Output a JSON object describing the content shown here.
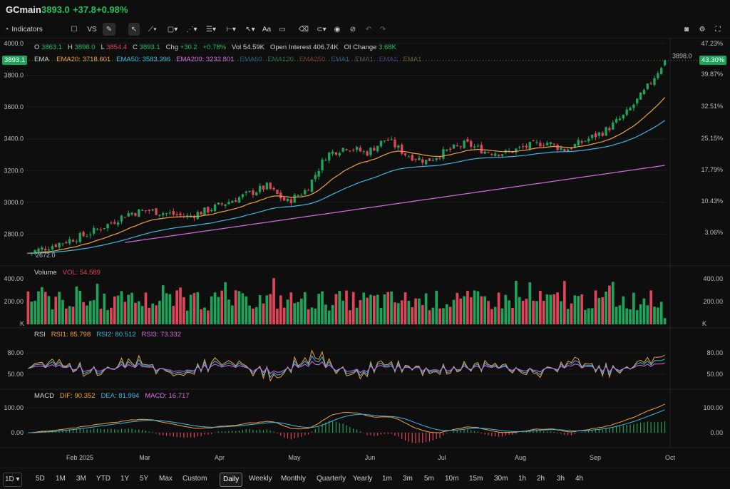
{
  "header": {
    "symbol": "GCmain",
    "price": "3893.0",
    "change": "+37.8",
    "change_pct": "+0.98%"
  },
  "toolbar": {
    "indicators_label": "Indicators",
    "vs_label": "VS",
    "text_tool": "Aa"
  },
  "ohlc": {
    "o_label": "O",
    "o": "3863.1",
    "h_label": "H",
    "h": "3898.0",
    "l_label": "L",
    "l": "3854.4",
    "c_label": "C",
    "c": "3893.1",
    "chg_label": "Chg",
    "chg": "+30.2",
    "chg_pct": "+0.78%",
    "vol_label": "Vol",
    "vol": "54.59K",
    "oi_label": "Open Interest",
    "oi": "406.74K",
    "oic_label": "OI Change",
    "oic": "3.68K"
  },
  "ema_legend": {
    "name": "EMA",
    "ema20": "EMA20: 3718.601",
    "ema50": "EMA50: 3583.396",
    "ema200": "EMA200: 3232.801",
    "extra": [
      "EMA60",
      "EMA120",
      "EMA250",
      "EMA1",
      "EMA1",
      "EMA1",
      "EMA1"
    ]
  },
  "price_axis": {
    "ticks": [
      "4000.0",
      "3800.0",
      "3600.0",
      "3400.0",
      "3200.0",
      "3000.0",
      "2800.0"
    ],
    "current": "3893.1",
    "high_marker": "3898.0",
    "low_marker": "2672.0"
  },
  "pct_axis": {
    "ticks": [
      "47.23%",
      "39.87%",
      "32.51%",
      "25.15%",
      "17.79%",
      "10.43%",
      "3.06%"
    ],
    "current": "43.30%"
  },
  "volume": {
    "title": "Volume",
    "vol_label": "VOL: 54.589",
    "ticks": [
      "400.00",
      "200.00"
    ],
    "unit": "K"
  },
  "rsi": {
    "title": "RSI",
    "rsi1": "RSI1: 85.798",
    "rsi2": "RSI2: 80.512",
    "rsi3": "RSI3: 73.332",
    "ticks": [
      "80.00",
      "50.00"
    ]
  },
  "macd": {
    "title": "MACD",
    "dif": "DIF: 90.352",
    "dea": "DEA: 81.994",
    "macd": "MACD: 16.717",
    "ticks": [
      "100.00",
      "0.00"
    ]
  },
  "time_axis": [
    "Feb 2025",
    "Mar",
    "Apr",
    "May",
    "Jun",
    "Jul",
    "Aug",
    "Sep",
    "Oct"
  ],
  "footer": {
    "ranges": [
      "5D",
      "1M",
      "3M",
      "YTD",
      "1Y",
      "5Y",
      "Max",
      "Custom"
    ],
    "intervals": [
      "Daily",
      "Weekly",
      "Monthly",
      "Quarterly",
      "Yearly",
      "1m",
      "3m",
      "5m",
      "10m",
      "15m",
      "30m",
      "1h",
      "2h",
      "3h",
      "4h"
    ],
    "selected": "Daily"
  },
  "colors": {
    "up": "#1fa35a",
    "down": "#e0435a",
    "ema20": "#f0a040",
    "ema50": "#3fb6e0",
    "ema200": "#d46ee0",
    "rsi1": "#f0a040",
    "rsi2": "#3fb6e0",
    "rsi3": "#d46ee0"
  },
  "chart_data": {
    "type": "candlestick",
    "price_range": [
      2600,
      4000
    ],
    "points_close": [
      2680,
      2720,
      2760,
      2800,
      2860,
      2930,
      2950,
      2930,
      2910,
      2950,
      3000,
      3050,
      3100,
      3000,
      3080,
      3300,
      3350,
      3310,
      3400,
      3300,
      3260,
      3320,
      3370,
      3320,
      3310,
      3350,
      3380,
      3330,
      3390,
      3450,
      3550,
      3700,
      3893
    ]
  }
}
